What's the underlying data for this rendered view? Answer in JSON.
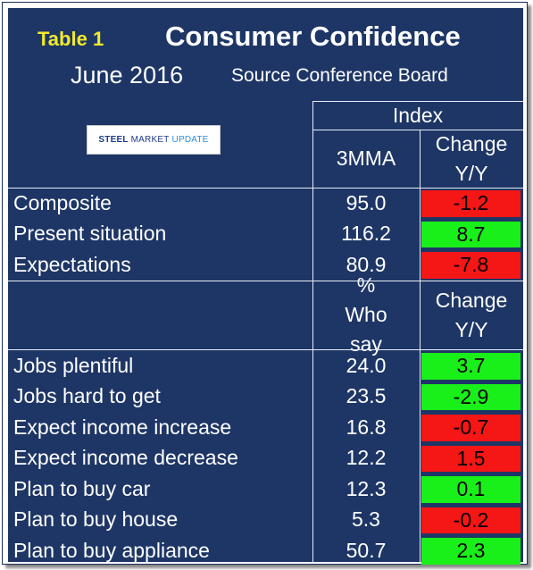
{
  "header": {
    "table_label": "Table 1",
    "title": "Consumer Confidence",
    "date": "June 2016",
    "source": "Source Conference Board"
  },
  "logo": {
    "part1": "STEEL",
    "part2": "MARKET",
    "part3": "UPDATE"
  },
  "index_header": "Index",
  "section1": {
    "col1": "3MMA",
    "col2": "Change Y/Y",
    "rows": [
      {
        "label": "Composite",
        "value": "95.0",
        "change": "-1.2",
        "status": "negative"
      },
      {
        "label": "Present situation",
        "value": "116.2",
        "change": "8.7",
        "status": "positive"
      },
      {
        "label": "Expectations",
        "value": "80.9",
        "change": "-7.8",
        "status": "negative"
      }
    ]
  },
  "section2": {
    "col1": "% Who say",
    "col2": "Change Y/Y",
    "rows": [
      {
        "label": "Jobs plentiful",
        "value": "24.0",
        "change": "3.7",
        "status": "positive"
      },
      {
        "label": "Jobs hard to get",
        "value": "23.5",
        "change": "-2.9",
        "status": "positive"
      },
      {
        "label": "Expect income increase",
        "value": "16.8",
        "change": "-0.7",
        "status": "negative"
      },
      {
        "label": "Expect income decrease",
        "value": "12.2",
        "change": "1.5",
        "status": "negative"
      },
      {
        "label": "Plan to buy car",
        "value": "12.3",
        "change": "0.1",
        "status": "positive"
      },
      {
        "label": "Plan to buy house",
        "value": "5.3",
        "change": "-0.2",
        "status": "negative"
      },
      {
        "label": "Plan to buy appliance",
        "value": "50.7",
        "change": "2.3",
        "status": "positive"
      }
    ]
  },
  "colors": {
    "background": "#1e3666",
    "positive": "#19f019",
    "negative": "#f51616",
    "title_accent": "#f2ea2c"
  }
}
